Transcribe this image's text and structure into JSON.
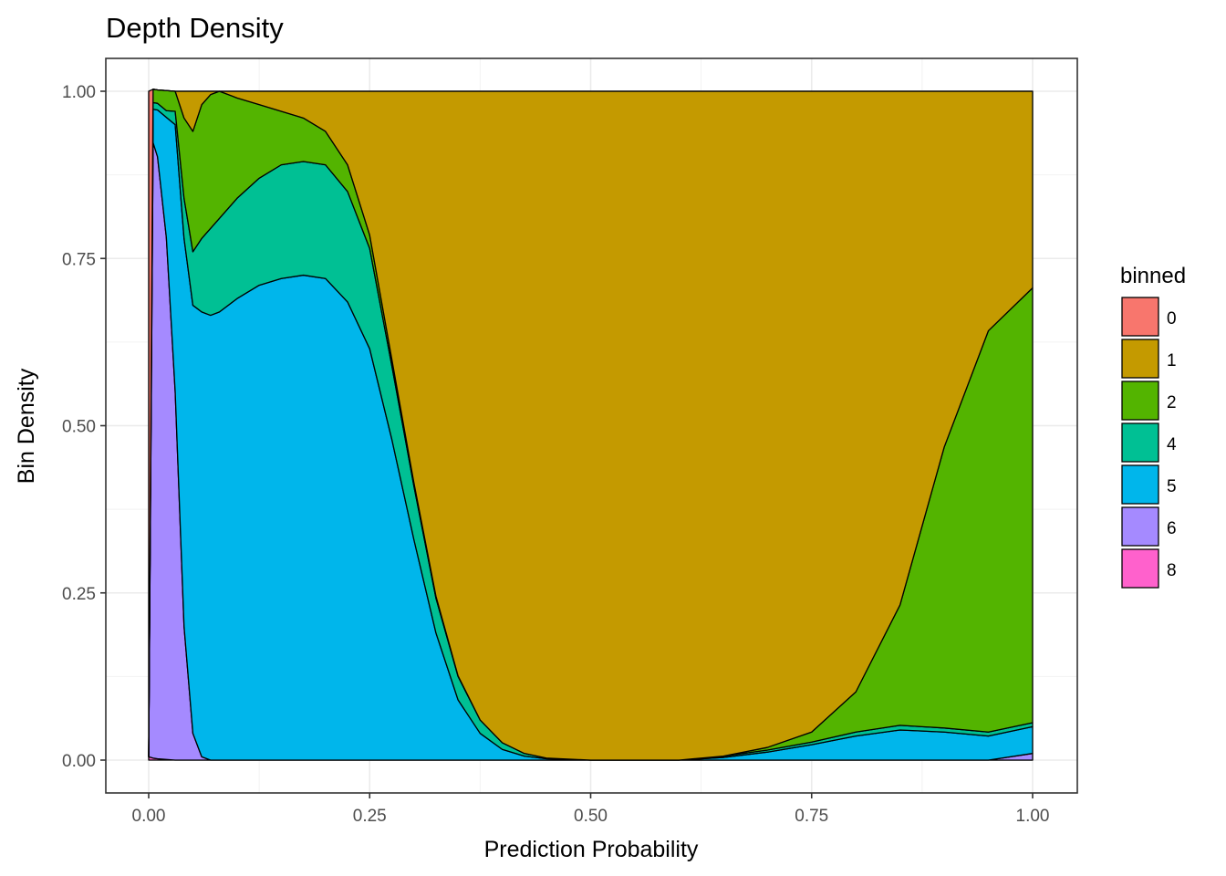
{
  "chart_data": {
    "type": "area",
    "stacked": true,
    "normalized": true,
    "title": "Depth Density",
    "xlabel": "Prediction Probability",
    "ylabel": "Bin Density",
    "xlim": [
      0,
      1
    ],
    "ylim": [
      0,
      1
    ],
    "x_ticks": [
      "0.00",
      "0.25",
      "0.50",
      "0.75",
      "1.00"
    ],
    "y_ticks": [
      "0.00",
      "0.25",
      "0.50",
      "0.75",
      "1.00"
    ],
    "grid": true,
    "legend": {
      "title": "binned",
      "position": "right"
    },
    "x": [
      0.0,
      0.005,
      0.01,
      0.02,
      0.03,
      0.04,
      0.05,
      0.06,
      0.07,
      0.08,
      0.1,
      0.125,
      0.15,
      0.175,
      0.2,
      0.225,
      0.25,
      0.275,
      0.3,
      0.325,
      0.35,
      0.375,
      0.4,
      0.425,
      0.45,
      0.5,
      0.55,
      0.6,
      0.65,
      0.7,
      0.75,
      0.8,
      0.85,
      0.9,
      0.95,
      1.0
    ],
    "series": [
      {
        "name": "8",
        "color": "#FF61CC",
        "values": [
          0.005,
          0.003,
          0.002,
          0.001,
          0.0,
          0.0,
          0.0,
          0.0,
          0.0,
          0.0,
          0.0,
          0.0,
          0.0,
          0.0,
          0.0,
          0.0,
          0.0,
          0.0,
          0.0,
          0.0,
          0.0,
          0.0,
          0.0,
          0.0,
          0.0,
          0.0,
          0.0,
          0.0,
          0.0,
          0.0,
          0.0,
          0.0,
          0.0,
          0.0,
          0.0,
          0.0
        ]
      },
      {
        "name": "6",
        "color": "#A58AFF",
        "values": [
          0.0,
          0.92,
          0.9,
          0.78,
          0.55,
          0.2,
          0.04,
          0.005,
          0.0,
          0.0,
          0.0,
          0.0,
          0.0,
          0.0,
          0.0,
          0.0,
          0.0,
          0.0,
          0.0,
          0.0,
          0.0,
          0.0,
          0.0,
          0.0,
          0.0,
          0.0,
          0.0,
          0.0,
          0.0,
          0.0,
          0.0,
          0.0,
          0.0,
          0.0,
          0.0,
          0.01
        ]
      },
      {
        "name": "5",
        "color": "#00B6EB",
        "values": [
          0.0,
          0.05,
          0.07,
          0.18,
          0.4,
          0.58,
          0.64,
          0.665,
          0.665,
          0.67,
          0.69,
          0.71,
          0.72,
          0.725,
          0.72,
          0.685,
          0.615,
          0.48,
          0.33,
          0.19,
          0.09,
          0.04,
          0.016,
          0.006,
          0.002,
          0.0,
          0.0,
          0.0,
          0.004,
          0.012,
          0.023,
          0.036,
          0.045,
          0.042,
          0.036,
          0.04
        ]
      },
      {
        "name": "4",
        "color": "#00C094",
        "values": [
          0.0,
          0.01,
          0.01,
          0.01,
          0.02,
          0.06,
          0.08,
          0.11,
          0.13,
          0.14,
          0.15,
          0.16,
          0.17,
          0.17,
          0.17,
          0.165,
          0.15,
          0.11,
          0.08,
          0.052,
          0.035,
          0.02,
          0.01,
          0.004,
          0.001,
          0.0,
          0.0,
          0.0,
          0.002,
          0.003,
          0.004,
          0.006,
          0.007,
          0.006,
          0.006,
          0.006
        ]
      },
      {
        "name": "2",
        "color": "#53B400",
        "values": [
          0.0,
          0.02,
          0.02,
          0.03,
          0.03,
          0.12,
          0.18,
          0.2,
          0.2,
          0.19,
          0.15,
          0.11,
          0.08,
          0.065,
          0.05,
          0.04,
          0.02,
          0.01,
          0.005,
          0.003,
          0.001,
          0.0,
          0.0,
          0.0,
          0.0,
          0.0,
          0.0,
          0.0,
          0.0,
          0.004,
          0.015,
          0.06,
          0.18,
          0.42,
          0.6,
          0.65
        ]
      },
      {
        "name": "1",
        "color": "#C49A00",
        "values": [
          0.0,
          0.0,
          0.0,
          0.0,
          0.0,
          0.04,
          0.06,
          0.02,
          0.005,
          0.0,
          0.01,
          0.02,
          0.03,
          0.04,
          0.06,
          0.11,
          0.215,
          0.4,
          0.585,
          0.755,
          0.874,
          0.94,
          0.974,
          0.99,
          0.997,
          1.0,
          1.0,
          1.0,
          0.994,
          0.981,
          0.958,
          0.898,
          0.768,
          0.532,
          0.358,
          0.294
        ]
      },
      {
        "name": "0",
        "color": "#F8766D",
        "values": [
          0.995,
          0.0,
          0.0,
          0.0,
          0.0,
          0.0,
          0.0,
          0.0,
          0.0,
          0.0,
          0.0,
          0.0,
          0.0,
          0.0,
          0.0,
          0.0,
          0.0,
          0.0,
          0.0,
          0.0,
          0.0,
          0.0,
          0.0,
          0.0,
          0.0,
          0.0,
          0.0,
          0.0,
          0.0,
          0.0,
          0.0,
          0.0,
          0.0,
          0.0,
          0.0,
          0.0
        ]
      }
    ],
    "legend_order": [
      "0",
      "1",
      "2",
      "4",
      "5",
      "6",
      "8"
    ]
  }
}
